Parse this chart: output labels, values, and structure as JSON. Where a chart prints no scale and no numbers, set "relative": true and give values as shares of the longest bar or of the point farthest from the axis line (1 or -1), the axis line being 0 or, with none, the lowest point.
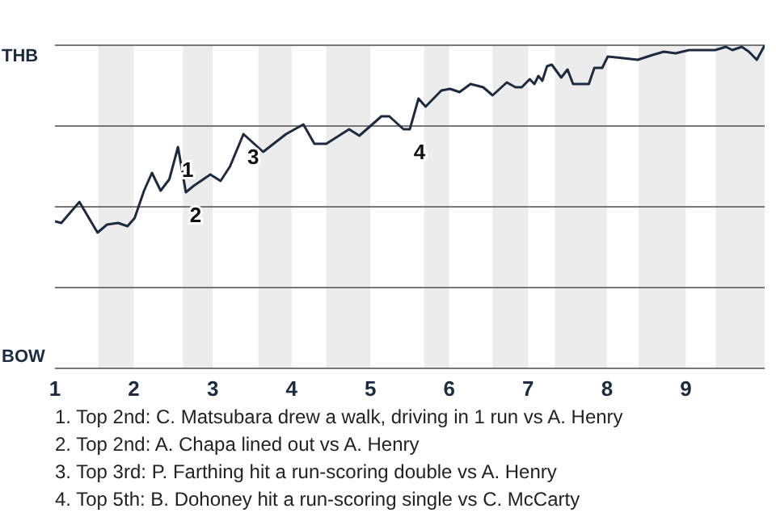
{
  "chart_data": {
    "type": "line",
    "relative": true,
    "x": [
      1,
      1.08,
      1.31,
      1.54,
      1.66,
      1.8,
      1.92,
      2.01,
      2.13,
      2.23,
      2.34,
      2.45,
      2.56,
      2.66,
      2.76,
      2.97,
      3.1,
      3.22,
      3.39,
      3.64,
      3.93,
      4.15,
      4.29,
      4.44,
      4.73,
      4.86,
      5.14,
      5.24,
      5.42,
      5.5,
      5.61,
      5.7,
      5.9,
      6.01,
      6.13,
      6.27,
      6.43,
      6.55,
      6.73,
      6.84,
      6.92,
      7.02,
      7.08,
      7.13,
      7.18,
      7.24,
      7.3,
      7.42,
      7.5,
      7.57,
      7.77,
      7.84,
      7.94,
      8.01,
      8.39,
      8.58,
      8.72,
      8.87,
      9.04,
      9.37,
      9.51,
      9.59,
      9.71,
      9.8,
      9.9,
      10
    ],
    "series": [
      {
        "color": "#1c2b3f",
        "values": [
          -0.09,
          -0.1,
          0.03,
          -0.16,
          -0.11,
          -0.1,
          -0.12,
          -0.07,
          0.1,
          0.21,
          0.1,
          0.17,
          0.37,
          0.09,
          0.13,
          0.2,
          0.16,
          0.25,
          0.45,
          0.34,
          0.45,
          0.51,
          0.39,
          0.39,
          0.48,
          0.44,
          0.56,
          0.56,
          0.48,
          0.48,
          0.67,
          0.62,
          0.72,
          0.73,
          0.71,
          0.76,
          0.74,
          0.69,
          0.77,
          0.74,
          0.74,
          0.79,
          0.76,
          0.81,
          0.78,
          0.87,
          0.88,
          0.8,
          0.85,
          0.76,
          0.76,
          0.86,
          0.86,
          0.93,
          0.91,
          0.94,
          0.96,
          0.95,
          0.97,
          0.97,
          0.99,
          0.97,
          0.99,
          0.96,
          0.91,
          1
        ]
      }
    ],
    "xlim": [
      1,
      10
    ],
    "xticks": [
      1,
      2,
      3,
      4,
      5,
      6,
      7,
      8,
      9
    ],
    "ref_lines": [
      {
        "axis": "y",
        "value": 1,
        "color": "#777777"
      },
      {
        "axis": "y",
        "value": 0.5,
        "color": "#777777"
      },
      {
        "axis": "y",
        "value": 0,
        "color": "#777777"
      },
      {
        "axis": "y",
        "value": -0.5,
        "color": "#777777"
      }
    ],
    "marker": "none",
    "line_style": "solid",
    "legend": false,
    "bands": [
      {
        "axis": "x",
        "from": 1.55,
        "to": 2,
        "color": "#ececec"
      },
      {
        "axis": "x",
        "from": 2.62,
        "to": 3,
        "color": "#ececec"
      },
      {
        "axis": "x",
        "from": 3.58,
        "to": 4,
        "color": "#ececec"
      },
      {
        "axis": "x",
        "from": 4.44,
        "to": 5,
        "color": "#ececec"
      },
      {
        "axis": "x",
        "from": 5.68,
        "to": 6,
        "color": "#ececec"
      },
      {
        "axis": "x",
        "from": 6.55,
        "to": 7,
        "color": "#ececec"
      },
      {
        "axis": "x",
        "from": 7.34,
        "to": 8,
        "color": "#ececec"
      },
      {
        "axis": "x",
        "from": 8.4,
        "to": 9,
        "color": "#ececec"
      },
      {
        "axis": "x",
        "from": 9.38,
        "to": 10,
        "color": "#ececec"
      }
    ],
    "annotations": [
      "THB",
      "BOW",
      {
        "text": "1",
        "x": 2.56,
        "y": 0.37
      },
      {
        "text": "2",
        "x": 2.66,
        "y": 0.09
      },
      {
        "text": "3",
        "x": 3.39,
        "y": 0.45
      },
      {
        "text": "4",
        "x": 5.5,
        "y": 0.48
      },
      "1. Top 2nd: C. Matsubara drew a walk, driving in 1 run vs A. Henry",
      "2. Top 2nd: A. Chapa lined out vs A. Henry",
      "3. Top 3rd: P. Farthing hit a run-scoring double vs A. Henry",
      "4. Top 5th: B. Dohoney hit a run-scoring single vs C. McCarty"
    ]
  }
}
